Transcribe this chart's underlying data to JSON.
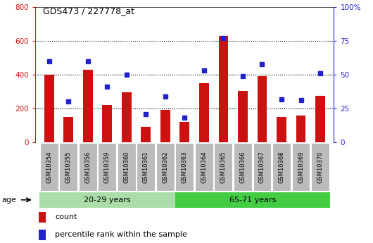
{
  "title": "GDS473 / 227778_at",
  "categories": [
    "GSM10354",
    "GSM10355",
    "GSM10356",
    "GSM10359",
    "GSM10360",
    "GSM10361",
    "GSM10362",
    "GSM10363",
    "GSM10364",
    "GSM10365",
    "GSM10366",
    "GSM10367",
    "GSM10368",
    "GSM10369",
    "GSM10370"
  ],
  "counts": [
    400,
    150,
    430,
    220,
    295,
    90,
    190,
    120,
    350,
    630,
    305,
    390,
    150,
    160,
    275
  ],
  "percentile": [
    60,
    30,
    60,
    41,
    50,
    21,
    34,
    18,
    53,
    77,
    49,
    58,
    32,
    31,
    51
  ],
  "bar_color": "#cc1111",
  "dot_color": "#2222cc",
  "ylim_left": [
    0,
    800
  ],
  "ylim_right": [
    0,
    100
  ],
  "yticks_left": [
    0,
    200,
    400,
    600,
    800
  ],
  "yticks_right": [
    0,
    25,
    50,
    75,
    100
  ],
  "group1_label": "20-29 years",
  "group2_label": "65-71 years",
  "group1_count": 7,
  "group2_count": 8,
  "age_label": "age",
  "legend_count": "count",
  "legend_percentile": "percentile rank within the sample",
  "group1_color": "#aaddaa",
  "group2_color": "#44cc44",
  "xticklabel_bg": "#bbbbbb",
  "bar_width": 0.5
}
